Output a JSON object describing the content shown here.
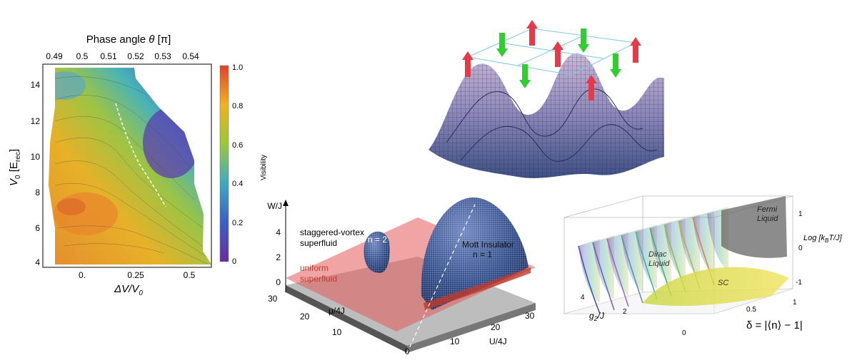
{
  "panels": {
    "contour": {
      "top_axis_title_text": "Phase angle ",
      "top_axis_title_sym": "θ",
      "top_axis_title_unit": " [π]",
      "top_ticks": [
        "0.49",
        "0.5",
        "0.51",
        "0.52",
        "0.53",
        "0.54"
      ],
      "y_label_main": "V",
      "y_label_sub": "0",
      "y_label_rest": " [E",
      "y_label_rest_sub": "rec",
      "y_label_end": "]",
      "y_ticks": [
        "14",
        "12",
        "10",
        "8",
        "6",
        "4"
      ],
      "x_label_main": "ΔV/V",
      "x_label_sub": "0",
      "x_ticks": [
        "0.",
        "0.25",
        "0.5"
      ],
      "colorbar_label": "Visibility",
      "colorbar_ticks": [
        "1.0",
        "0.8",
        "0.6",
        "0.4",
        "0.2",
        "0"
      ]
    },
    "phase3d": {
      "z_axis": "W/J",
      "z_ticks": [
        "4",
        "2",
        "0"
      ],
      "label_staggered_1": "staggered-vortex",
      "label_staggered_2": "superfluid",
      "label_n2": "n = 2",
      "label_uniform_1": "uniform",
      "label_uniform_2": "superfluid",
      "label_mott_1": "Mott Insulator",
      "label_mott_2": "n = 1",
      "mu_axis": "μ/4J",
      "mu_ticks": [
        "30",
        "20",
        "10"
      ],
      "u_axis": "U/4J",
      "u_ticks": [
        "30",
        "20",
        "10"
      ],
      "origin": "0"
    },
    "dirac": {
      "fermi_1": "Fermi",
      "fermi_2": "Liquid",
      "dirac_1": "Dirac",
      "dirac_2": "Liquid",
      "sc": "SC",
      "log_axis": "Log [k",
      "log_axis_sub": "B",
      "log_axis_end": "T/J]",
      "log_ticks": [
        "1",
        "0",
        "-1"
      ],
      "g_axis": "g",
      "g_axis_sub": "2",
      "g_axis_end": "/J",
      "g_ticks": [
        "4",
        "2"
      ],
      "delta_axis": "δ = |⟨n⟩ − 1|",
      "delta_ticks": [
        "1",
        "0.5",
        "0"
      ]
    }
  },
  "colors": {
    "viridis_low": "#5b2a9a",
    "viridis_mid": "#3bb0b0",
    "viridis_high": "#e65a2e",
    "up_arrow": "#e23b4a",
    "down_arrow": "#33cc33",
    "mott_dome": "#2f4a87",
    "plane_red": "#e45a5a"
  }
}
